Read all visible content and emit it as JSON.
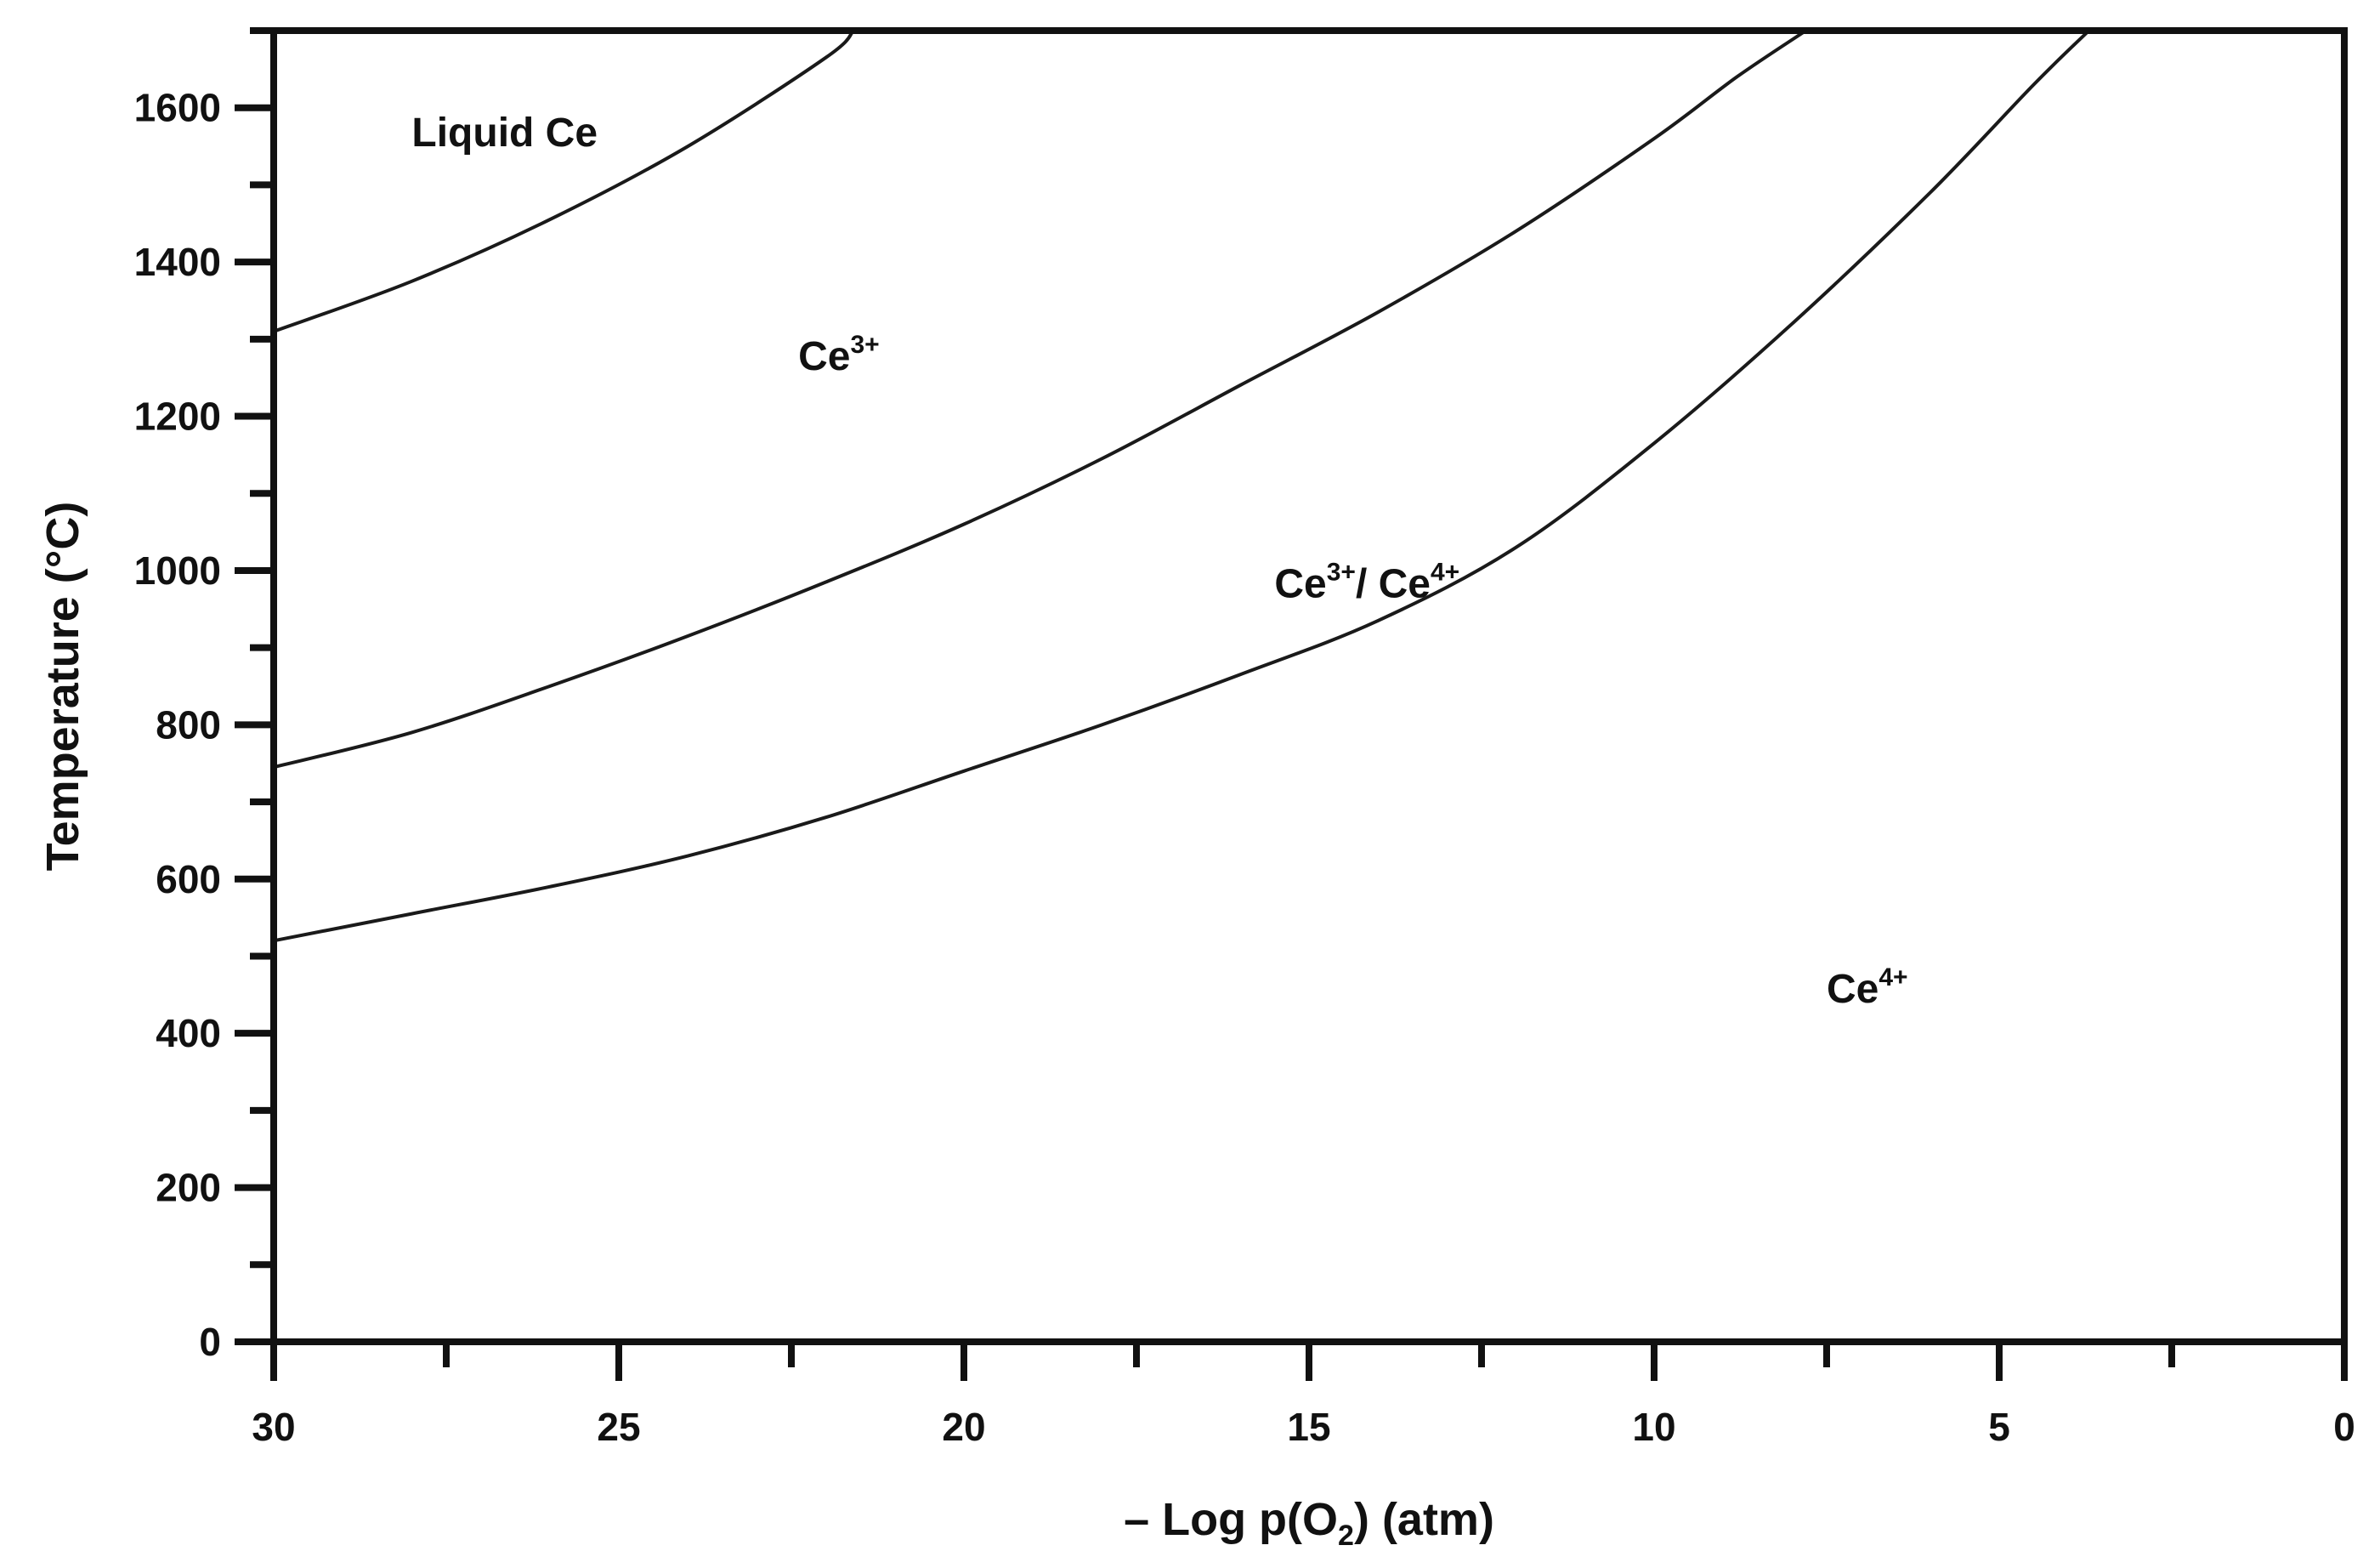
{
  "chart_data": {
    "type": "line",
    "title": "",
    "xlabel": {
      "prefix": "– Log p(O",
      "subscript": "2",
      "suffix": ") (atm)"
    },
    "ylabel": "Temperature (°C)",
    "xlim": [
      30,
      0
    ],
    "ylim": [
      0,
      1700
    ],
    "x_reversed": true,
    "x_ticks": [
      30,
      25,
      20,
      15,
      10,
      5,
      0
    ],
    "x_minor_ticks": [
      27.5,
      22.5,
      17.5,
      12.5,
      7.5,
      2.5
    ],
    "y_ticks": [
      0,
      200,
      400,
      600,
      800,
      1000,
      1200,
      1400,
      1600
    ],
    "y_minor_step": 100,
    "grid": false,
    "legend": "none",
    "series": [
      {
        "x": [
          30,
          28,
          26,
          24,
          22,
          21.6
        ],
        "y": [
          1310,
          1375,
          1455,
          1550,
          1665,
          1700
        ]
      },
      {
        "x": [
          30,
          28,
          26,
          24,
          22,
          20,
          18,
          16,
          14,
          12,
          10,
          8.8,
          7.8
        ],
        "y": [
          745,
          790,
          850,
          915,
          985,
          1060,
          1145,
          1240,
          1335,
          1440,
          1560,
          1640,
          1700
        ]
      },
      {
        "x": [
          30,
          28,
          26,
          24,
          22,
          20,
          18,
          16,
          14,
          12,
          10,
          8,
          6,
          4.5,
          3.7
        ],
        "y": [
          520,
          555,
          590,
          630,
          680,
          740,
          800,
          865,
          935,
          1030,
          1165,
          1320,
          1490,
          1630,
          1700
        ]
      }
    ],
    "region_labels": [
      {
        "base": "Liquid Ce",
        "sup": "",
        "mid": "",
        "base2": "",
        "sup2": "",
        "x": 28.0,
        "y": 1550
      },
      {
        "base": "Ce",
        "sup": "3+",
        "mid": "",
        "base2": "",
        "sup2": "",
        "x": 22.4,
        "y": 1260
      },
      {
        "base": "Ce",
        "sup": "3+",
        "mid": "/ ",
        "base2": "Ce",
        "sup2": "4+",
        "x": 15.5,
        "y": 965
      },
      {
        "base": "Ce",
        "sup": "4+",
        "mid": "",
        "base2": "",
        "sup2": "",
        "x": 7.5,
        "y": 440
      }
    ],
    "colors": {
      "line": "#1a1a1a",
      "axis": "#111111",
      "text": "#111111"
    }
  }
}
